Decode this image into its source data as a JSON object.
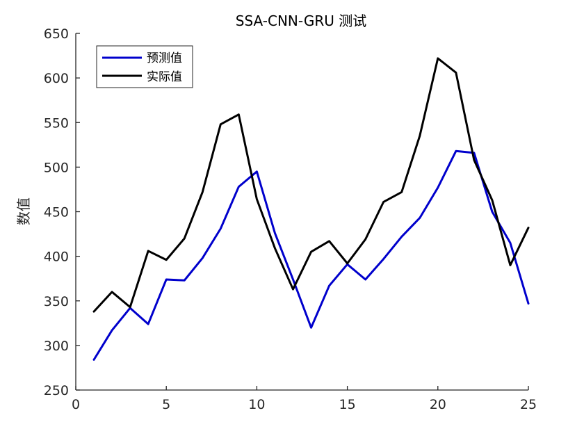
{
  "chart_data": {
    "type": "line",
    "title": "SSA-CNN-GRU 测试",
    "xlabel": "",
    "ylabel": "数值",
    "xlim": [
      0,
      25
    ],
    "ylim": [
      250,
      650
    ],
    "xticks": [
      0,
      5,
      10,
      15,
      20,
      25
    ],
    "yticks": [
      250,
      300,
      350,
      400,
      450,
      500,
      550,
      600,
      650
    ],
    "grid": false,
    "legend_position": "top-left",
    "x": [
      1,
      2,
      3,
      4,
      5,
      6,
      7,
      8,
      9,
      10,
      11,
      12,
      13,
      14,
      15,
      16,
      17,
      18,
      19,
      20,
      21,
      22,
      23,
      24,
      25
    ],
    "series": [
      {
        "name": "预测值",
        "color": "#0000CC",
        "values": [
          284,
          317,
          342,
          324,
          374,
          373,
          398,
          431,
          478,
          495,
          426,
          374,
          320,
          367,
          391,
          374,
          397,
          422,
          443,
          477,
          518,
          516,
          450,
          415,
          347
        ]
      },
      {
        "name": "实际值",
        "color": "#000000",
        "values": [
          338,
          360,
          343,
          406,
          396,
          420,
          472,
          548,
          559,
          464,
          409,
          363,
          405,
          417,
          392,
          419,
          461,
          472,
          535,
          622,
          606,
          508,
          463,
          390,
          432
        ]
      }
    ]
  }
}
